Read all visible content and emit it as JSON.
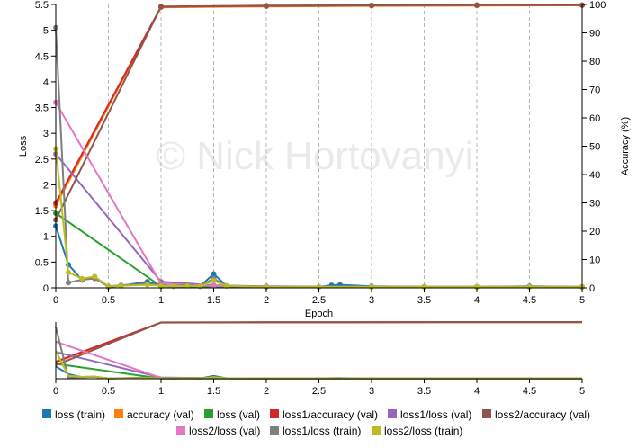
{
  "watermark": "© Nick Hortovanyi",
  "colors": {
    "loss_train": "#1f77b4",
    "accuracy_val": "#ff7f0e",
    "loss_val": "#2ca02c",
    "loss1_accuracy_val": "#d62728",
    "loss1_loss_val": "#9467bd",
    "loss2_accuracy_val": "#8c564b",
    "loss2_loss_val": "#e377c2",
    "loss1_loss_train": "#7f7f7f",
    "loss2_loss_train": "#bcbd22"
  },
  "chart_data": {
    "type": "line",
    "xlabel": "Epoch",
    "ylabel_left": "Loss",
    "ylabel_right": "Accuracy (%)",
    "xlim": [
      0,
      5
    ],
    "ylim_left": [
      0,
      5.5
    ],
    "ylim_right": [
      0,
      100
    ],
    "x_ticks": [
      "0",
      "0.5",
      "1",
      "1.5",
      "2",
      "2.5",
      "3",
      "3.5",
      "4",
      "4.5",
      "5"
    ],
    "y_left_ticks": [
      "0",
      "0.5",
      "1",
      "1.5",
      "2",
      "2.5",
      "3",
      "3.5",
      "4",
      "4.5",
      "5",
      "5.5"
    ],
    "y_right_ticks": [
      "0",
      "10",
      "20",
      "30",
      "40",
      "50",
      "60",
      "70",
      "80",
      "90",
      "100"
    ],
    "grid": "vertical dashed",
    "legend_position": "bottom",
    "series": [
      {
        "name": "loss (train)",
        "color_key": "loss_train",
        "axis": "left",
        "x": [
          0,
          0.12,
          0.25,
          0.37,
          0.5,
          0.62,
          0.87,
          1.0,
          1.12,
          1.25,
          1.37,
          1.5,
          1.62,
          2.0,
          2.5,
          2.62,
          2.7,
          3.0,
          3.5,
          4.0,
          4.5,
          5.0
        ],
        "y": [
          1.2,
          0.45,
          0.15,
          0.2,
          0.02,
          0.04,
          0.12,
          0.04,
          0.03,
          0.06,
          0.03,
          0.27,
          0.04,
          0.02,
          0.02,
          0.05,
          0.06,
          0.03,
          0.02,
          0.02,
          0.03,
          0.02
        ]
      },
      {
        "name": "accuracy (val)",
        "color_key": "accuracy_val",
        "axis": "right",
        "x": [
          0,
          1,
          2,
          3,
          4,
          5
        ],
        "y": [
          29,
          99,
          99.3,
          99.5,
          99.6,
          99.7
        ]
      },
      {
        "name": "loss (val)",
        "color_key": "loss_val",
        "axis": "left",
        "x": [
          0,
          1,
          2,
          3,
          4,
          5
        ],
        "y": [
          1.45,
          0.03,
          0.02,
          0.02,
          0.02,
          0.02
        ]
      },
      {
        "name": "loss1/accuracy (val)",
        "color_key": "loss1_accuracy_val",
        "axis": "right",
        "x": [
          0,
          1,
          2,
          3,
          4,
          5
        ],
        "y": [
          30,
          99.2,
          99.6,
          99.7,
          99.8,
          99.8
        ]
      },
      {
        "name": "loss1/loss (val)",
        "color_key": "loss1_loss_val",
        "axis": "left",
        "x": [
          0,
          1,
          1.5,
          2,
          3,
          4,
          5
        ],
        "y": [
          2.6,
          0.12,
          0.05,
          0.03,
          0.02,
          0.02,
          0.02
        ]
      },
      {
        "name": "loss2/accuracy (val)",
        "color_key": "loss2_accuracy_val",
        "axis": "right",
        "x": [
          0,
          1,
          2,
          3,
          4,
          5
        ],
        "y": [
          24,
          99.3,
          99.5,
          99.7,
          99.8,
          99.8
        ]
      },
      {
        "name": "loss2/loss (val)",
        "color_key": "loss2_loss_val",
        "axis": "left",
        "x": [
          0,
          1,
          1.5,
          2,
          3,
          4,
          5
        ],
        "y": [
          3.6,
          0.08,
          0.04,
          0.02,
          0.02,
          0.02,
          0.02
        ]
      },
      {
        "name": "loss1/loss (train)",
        "color_key": "loss1_loss_train",
        "axis": "left",
        "x": [
          0,
          0.12,
          0.25,
          0.37,
          0.5,
          0.62,
          0.87,
          1.0,
          1.12,
          1.25,
          1.37,
          1.5,
          1.62,
          2.0,
          2.5,
          3.0,
          3.5,
          4.0,
          4.5,
          5.0
        ],
        "y": [
          5.05,
          0.1,
          0.16,
          0.18,
          0.03,
          0.05,
          0.08,
          0.05,
          0.03,
          0.06,
          0.03,
          0.18,
          0.04,
          0.02,
          0.02,
          0.02,
          0.02,
          0.02,
          0.02,
          0.02
        ]
      },
      {
        "name": "loss2/loss (train)",
        "color_key": "loss2_loss_train",
        "axis": "left",
        "x": [
          0,
          0.12,
          0.25,
          0.37,
          0.5,
          0.62,
          0.87,
          1.0,
          1.12,
          1.25,
          1.37,
          1.5,
          1.62,
          2.0,
          2.5,
          3.0,
          3.5,
          4.0,
          4.5,
          5.0
        ],
        "y": [
          2.7,
          0.3,
          0.18,
          0.22,
          0.03,
          0.04,
          0.06,
          0.04,
          0.03,
          0.04,
          0.03,
          0.14,
          0.04,
          0.02,
          0.02,
          0.02,
          0.02,
          0.02,
          0.02,
          0.02
        ]
      }
    ]
  }
}
